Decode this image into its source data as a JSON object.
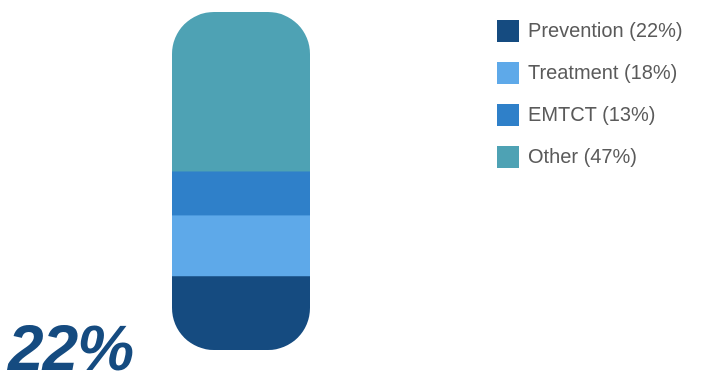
{
  "chart_data": {
    "type": "stacked-bar",
    "orientation": "vertical",
    "shape": "pill",
    "stack_order": "bottom-to-top",
    "grid": false,
    "legend_position": "top-right",
    "series": [
      {
        "name": "Prevention (22%)",
        "value": 22,
        "color": "#154b80"
      },
      {
        "name": "Treatment (18%)",
        "value": 18,
        "color": "#5ea9e9"
      },
      {
        "name": "EMTCT (13%)",
        "value": 13,
        "color": "#2f80c9"
      },
      {
        "name": "Other (47%)",
        "value": 47,
        "color": "#4ea2b4"
      }
    ],
    "highlight": {
      "label": "22%",
      "color": "#154b80"
    }
  }
}
